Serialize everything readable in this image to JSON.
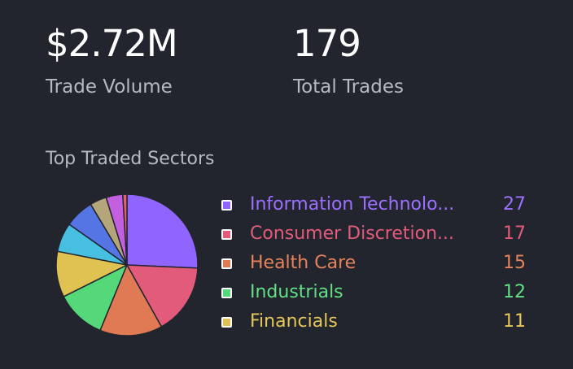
{
  "stats": {
    "volume": {
      "value": "$2.72M",
      "label": "Trade Volume"
    },
    "trades": {
      "value": "179",
      "label": "Total Trades"
    }
  },
  "sectors": {
    "title": "Top Traded Sectors"
  },
  "chart_data": {
    "type": "pie",
    "title": "",
    "slices": [
      {
        "name": "Information Technology",
        "display_label": "Information Technolo...",
        "value": 27,
        "color": "#8f64ff",
        "text_color": "#9b70ff"
      },
      {
        "name": "Consumer Discretionary",
        "display_label": "Consumer Discretion...",
        "value": 17,
        "color": "#e35b7b",
        "text_color": "#e35b7b"
      },
      {
        "name": "Health Care",
        "display_label": "Health Care",
        "value": 15,
        "color": "#e07a55",
        "text_color": "#e5835d"
      },
      {
        "name": "Industrials",
        "display_label": "Industrials",
        "value": 12,
        "color": "#55d879",
        "text_color": "#62e085"
      },
      {
        "name": "Financials",
        "display_label": "Financials",
        "value": 11,
        "color": "#dfc251",
        "text_color": "#e5c75a"
      },
      {
        "name": "",
        "value": 7,
        "color": "#47bfe0"
      },
      {
        "name": "",
        "value": 7,
        "color": "#5475e3"
      },
      {
        "name": "",
        "value": 4,
        "color": "#b4a57a"
      },
      {
        "name": "",
        "value": 4,
        "color": "#c45fe0"
      },
      {
        "name": "",
        "value": 1,
        "color": "#e76070"
      }
    ],
    "legend_count": 5,
    "legend_position": "right"
  }
}
